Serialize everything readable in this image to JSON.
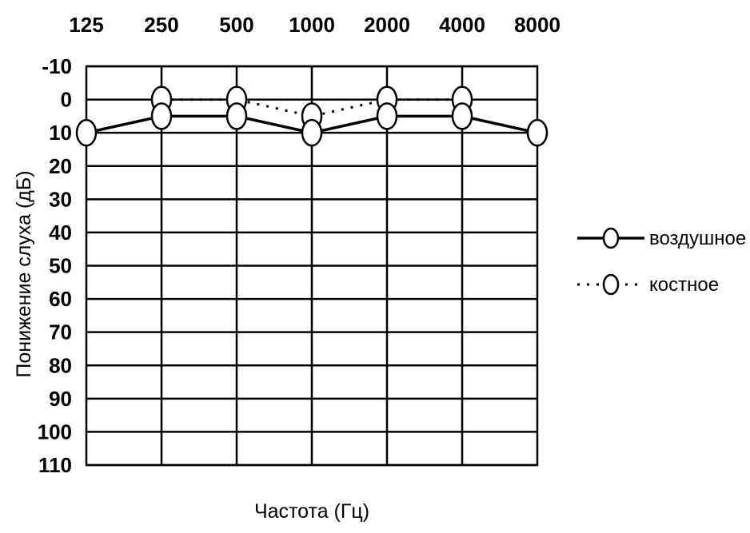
{
  "chart_data": {
    "type": "line",
    "title": "",
    "xlabel": "Частота (Гц)",
    "ylabel": "Понижение слуха (дБ)",
    "x": [
      "125",
      "250",
      "500",
      "1000",
      "2000",
      "4000",
      "8000"
    ],
    "y_ticks": [
      "-10",
      "0",
      "10",
      "20",
      "30",
      "40",
      "50",
      "60",
      "70",
      "80",
      "90",
      "100",
      "110"
    ],
    "ylim": [
      -10,
      110
    ],
    "y_inverted": true,
    "grid": true,
    "legend_position": "right",
    "series": [
      {
        "name": "воздушное",
        "style": "solid",
        "values": [
          10,
          5,
          5,
          10,
          5,
          5,
          10
        ]
      },
      {
        "name": "костное",
        "style": "dotted",
        "values": [
          null,
          0,
          0,
          5,
          0,
          0,
          null
        ]
      }
    ],
    "colors": {
      "line": "#000000",
      "marker_fill": "#ffffff",
      "background": "#ffffff"
    }
  }
}
